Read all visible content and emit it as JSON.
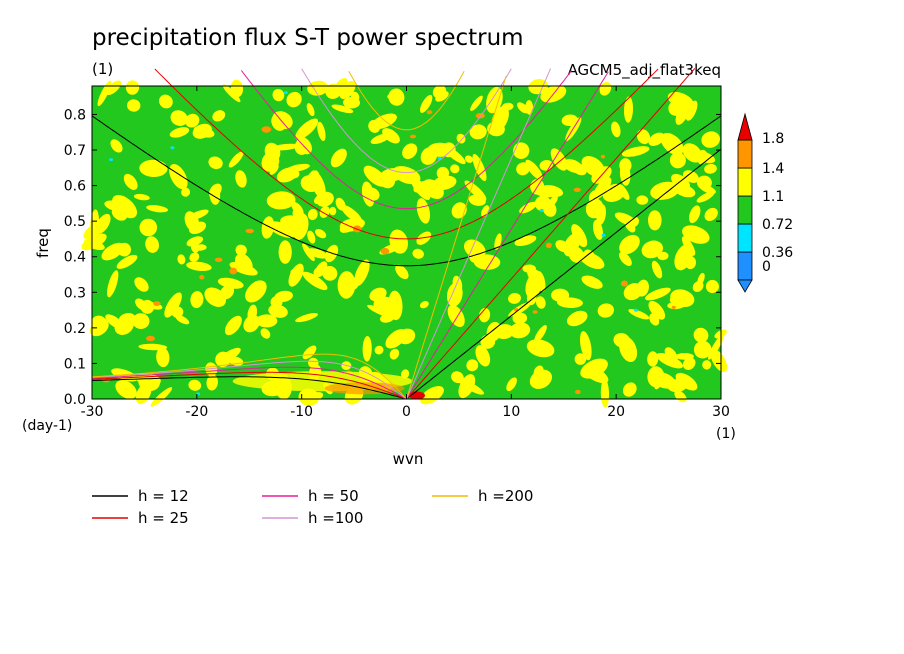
{
  "title": "precipitation flux S-T power spectrum",
  "unit_top": "(1)",
  "experiment": "AGCM5_adj_flat3keq",
  "chart_data": {
    "type": "heatmap",
    "xlabel": "wvn",
    "ylabel": "freq",
    "x_unit": "(1)",
    "y_unit": "(day-1)",
    "xlim": [
      -30,
      30
    ],
    "ylim": [
      0,
      0.88
    ],
    "xticks": [
      -30,
      -20,
      -10,
      0,
      10,
      20,
      30
    ],
    "yticks": [
      0.0,
      0.1,
      0.2,
      0.3,
      0.4,
      0.5,
      0.6,
      0.7,
      0.8
    ],
    "ytick_labels": [
      "0.0",
      "0.1",
      "0.2",
      "0.3",
      "0.4",
      "0.5",
      "0.6",
      "0.7",
      "0.8"
    ],
    "grid": false,
    "colorbar": {
      "levels": [
        "0",
        "0.36",
        "0.72",
        "1.1",
        "1.4",
        "1.8"
      ],
      "colors": [
        "#1e90ff",
        "#00e5ff",
        "#22c81e",
        "#ffff00",
        "#ff9600",
        "#e60000"
      ]
    },
    "background_level": 0.9,
    "dispersion_curves": [
      {
        "label": "h = 12",
        "color": "#000000"
      },
      {
        "label": "h = 25",
        "color": "#e60000"
      },
      {
        "label": "h = 50",
        "color": "#e61e9b"
      },
      {
        "label": "h =100",
        "color": "#d296d2"
      },
      {
        "label": "h =200",
        "color": "#f0be00"
      }
    ]
  }
}
